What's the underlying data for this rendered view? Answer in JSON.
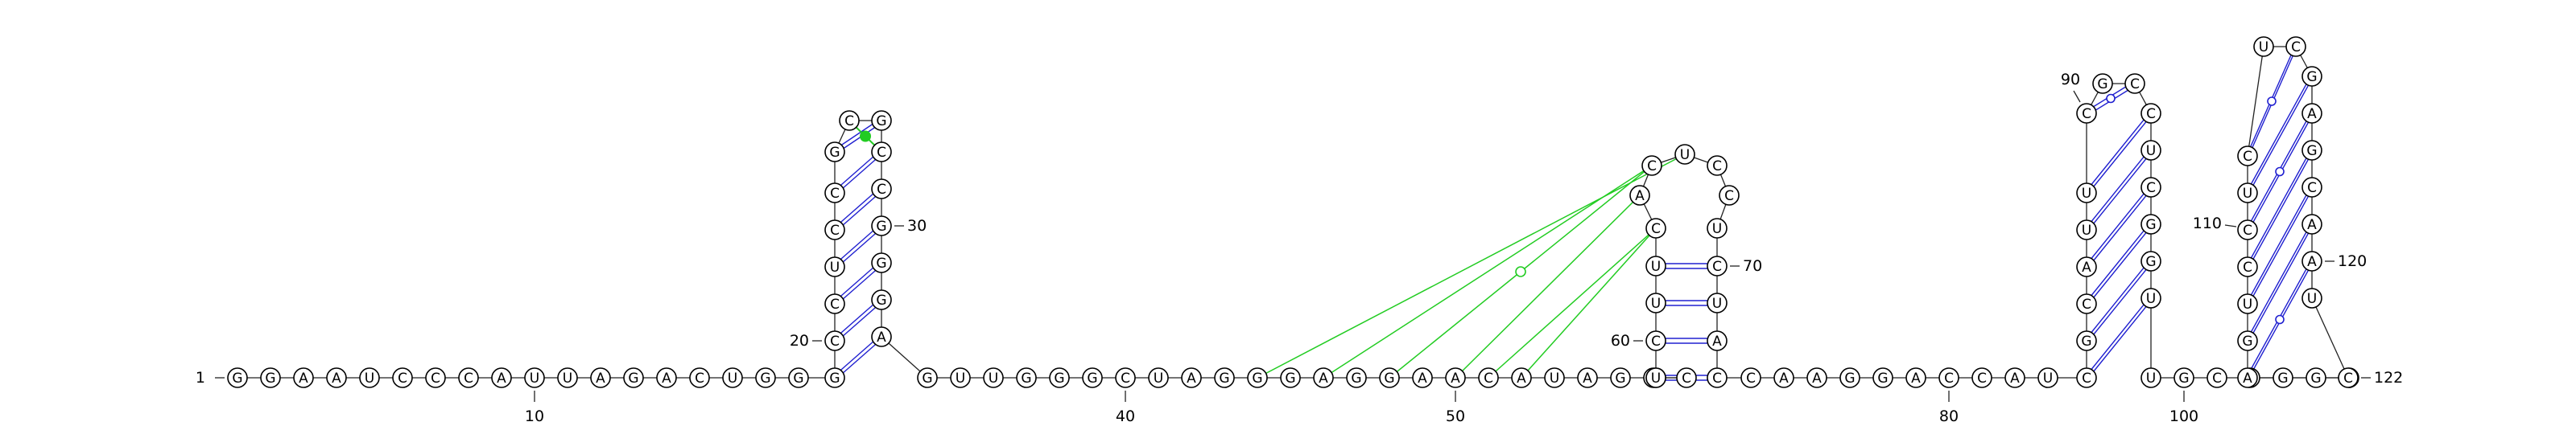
{
  "diagram": {
    "sequence": "GGAAUCCCAUUAGACUGGGCCUCCGCGCCGGGAGUUGGGCUAGGGAGGAACAUAGCCCUCUUCACUCCUCUACCAAGGACCAUCGCAUUCGCCUCGGUUGCCGGGAGUCCUCUCGAGCAAUCC",
    "numbering": [
      {
        "n": 1,
        "text": "1"
      },
      {
        "n": 10,
        "text": "10"
      },
      {
        "n": 20,
        "text": "20"
      },
      {
        "n": 30,
        "text": "30"
      },
      {
        "n": 40,
        "text": "40"
      },
      {
        "n": 50,
        "text": "50"
      },
      {
        "n": 60,
        "text": "60"
      },
      {
        "n": 70,
        "text": "70"
      },
      {
        "n": 80,
        "text": "80"
      },
      {
        "n": 90,
        "text": "90"
      },
      {
        "n": 100,
        "text": "100"
      },
      {
        "n": 110,
        "text": "110"
      },
      {
        "n": 120,
        "text": "120"
      },
      {
        "n": 122,
        "text": "122"
      }
    ],
    "colors": {
      "canonical_pair": "#2020d0",
      "tertiary_interaction": "#22cc22",
      "backbone": "#222222",
      "nucleotide_outline": "#000000"
    },
    "canonical_pairs": [
      [
        19,
        33
      ],
      [
        20,
        32
      ],
      [
        21,
        31
      ],
      [
        22,
        30
      ],
      [
        23,
        29
      ],
      [
        24,
        28
      ],
      [
        25,
        27
      ],
      [
        59,
        73
      ],
      [
        60,
        72
      ],
      [
        61,
        71
      ],
      [
        62,
        70
      ],
      [
        84,
        98
      ],
      [
        85,
        97
      ],
      [
        86,
        96
      ],
      [
        87,
        95
      ],
      [
        88,
        94
      ],
      [
        89,
        93
      ],
      [
        90,
        92
      ],
      [
        106,
        120
      ],
      [
        107,
        119
      ],
      [
        108,
        118
      ],
      [
        109,
        117
      ],
      [
        110,
        116
      ],
      [
        111,
        115
      ],
      [
        112,
        114
      ]
    ],
    "wobble_pairs": [
      [
        90,
        92
      ],
      [
        106,
        120
      ],
      [
        110,
        116
      ],
      [
        114,
        112
      ]
    ],
    "noncanonical_pairs": [
      [
        63,
        69
      ]
    ],
    "tertiary_filled_pairs": [
      [
        26,
        28
      ]
    ],
    "tertiary_interactions": [
      [
        44,
        66
      ],
      [
        46,
        65
      ],
      [
        48,
        65
      ],
      [
        50,
        64
      ],
      [
        51,
        63
      ],
      [
        52,
        63
      ]
    ],
    "tertiary_open_marker": [
      48,
      65
    ]
  }
}
